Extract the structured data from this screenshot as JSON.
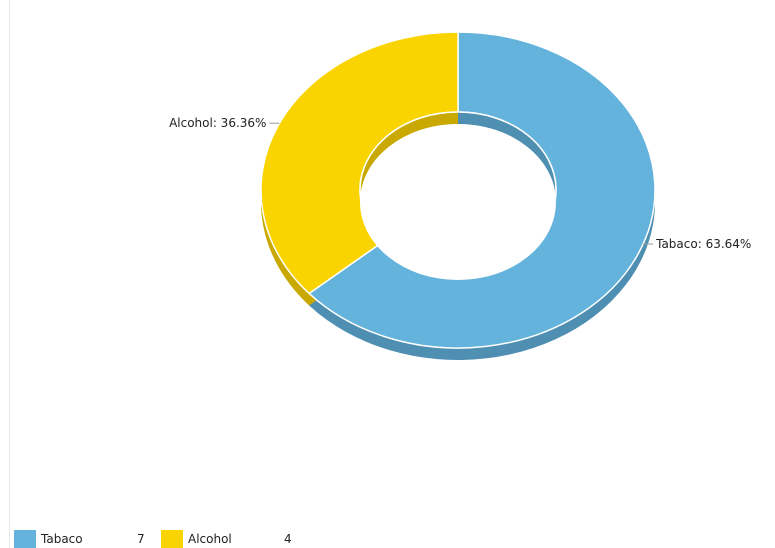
{
  "chart_data": {
    "type": "pie",
    "variant": "donut-3d",
    "title": "",
    "slices": [
      {
        "name": "Tabaco",
        "value": 7,
        "percent_label": "Tabaco: 63.64%",
        "color": "#63B3DC",
        "shade": "#4E8FB2"
      },
      {
        "name": "Alcohol",
        "value": 4,
        "percent_label": "Alcohol: 36.36%",
        "color": "#F9D400",
        "shade": "#C9A800"
      }
    ],
    "legend": {
      "placement": "bottom-left",
      "items": [
        {
          "label": "Tabaco",
          "value": "7",
          "color": "#63B3DC"
        },
        {
          "label": "Alcohol",
          "value": "4",
          "color": "#F9D400"
        }
      ]
    }
  }
}
